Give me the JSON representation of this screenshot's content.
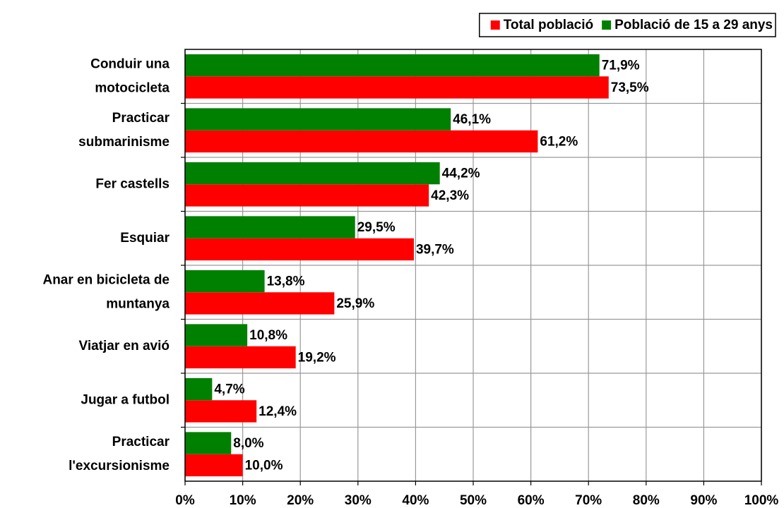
{
  "chart_data": {
    "type": "barh",
    "categories": [
      [
        "Conduir una",
        "motocicleta"
      ],
      [
        "Practicar",
        "submarinisme"
      ],
      [
        "Fer castells"
      ],
      [
        "Esquiar"
      ],
      [
        "Anar en bicicleta de",
        "muntanya"
      ],
      [
        "Viatjar en avió"
      ],
      [
        "Jugar a futbol"
      ],
      [
        "Practicar",
        "l'excursionisme"
      ]
    ],
    "series": [
      {
        "name": "Total població",
        "color": "#ff0000",
        "values": [
          73.5,
          61.2,
          42.3,
          39.7,
          25.9,
          19.2,
          12.4,
          10.0
        ],
        "value_labels": [
          "73,5%",
          "61,2%",
          "42,3%",
          "39,7%",
          "25,9%",
          "19,2%",
          "12,4%",
          "10,0%"
        ]
      },
      {
        "name": "Població de 15 a 29 anys",
        "color": "#008000",
        "values": [
          71.9,
          46.1,
          44.2,
          29.5,
          13.8,
          10.8,
          4.7,
          8.0
        ],
        "value_labels": [
          "71,9%",
          "46,1%",
          "44,2%",
          "29,5%",
          "13,8%",
          "10,8%",
          "4,7%",
          "8,0%"
        ]
      }
    ],
    "xlim": [
      0,
      100
    ],
    "xticks": [
      {
        "value": 0,
        "label": "0%"
      },
      {
        "value": 10,
        "label": "10%"
      },
      {
        "value": 20,
        "label": "20%"
      },
      {
        "value": 30,
        "label": "30%"
      },
      {
        "value": 40,
        "label": "40%"
      },
      {
        "value": 50,
        "label": "50%"
      },
      {
        "value": 60,
        "label": "60%"
      },
      {
        "value": 70,
        "label": "70%"
      },
      {
        "value": 80,
        "label": "80%"
      },
      {
        "value": 90,
        "label": "90%"
      },
      {
        "value": 100,
        "label": "100%"
      }
    ],
    "grid": true,
    "legend": "top-right"
  }
}
